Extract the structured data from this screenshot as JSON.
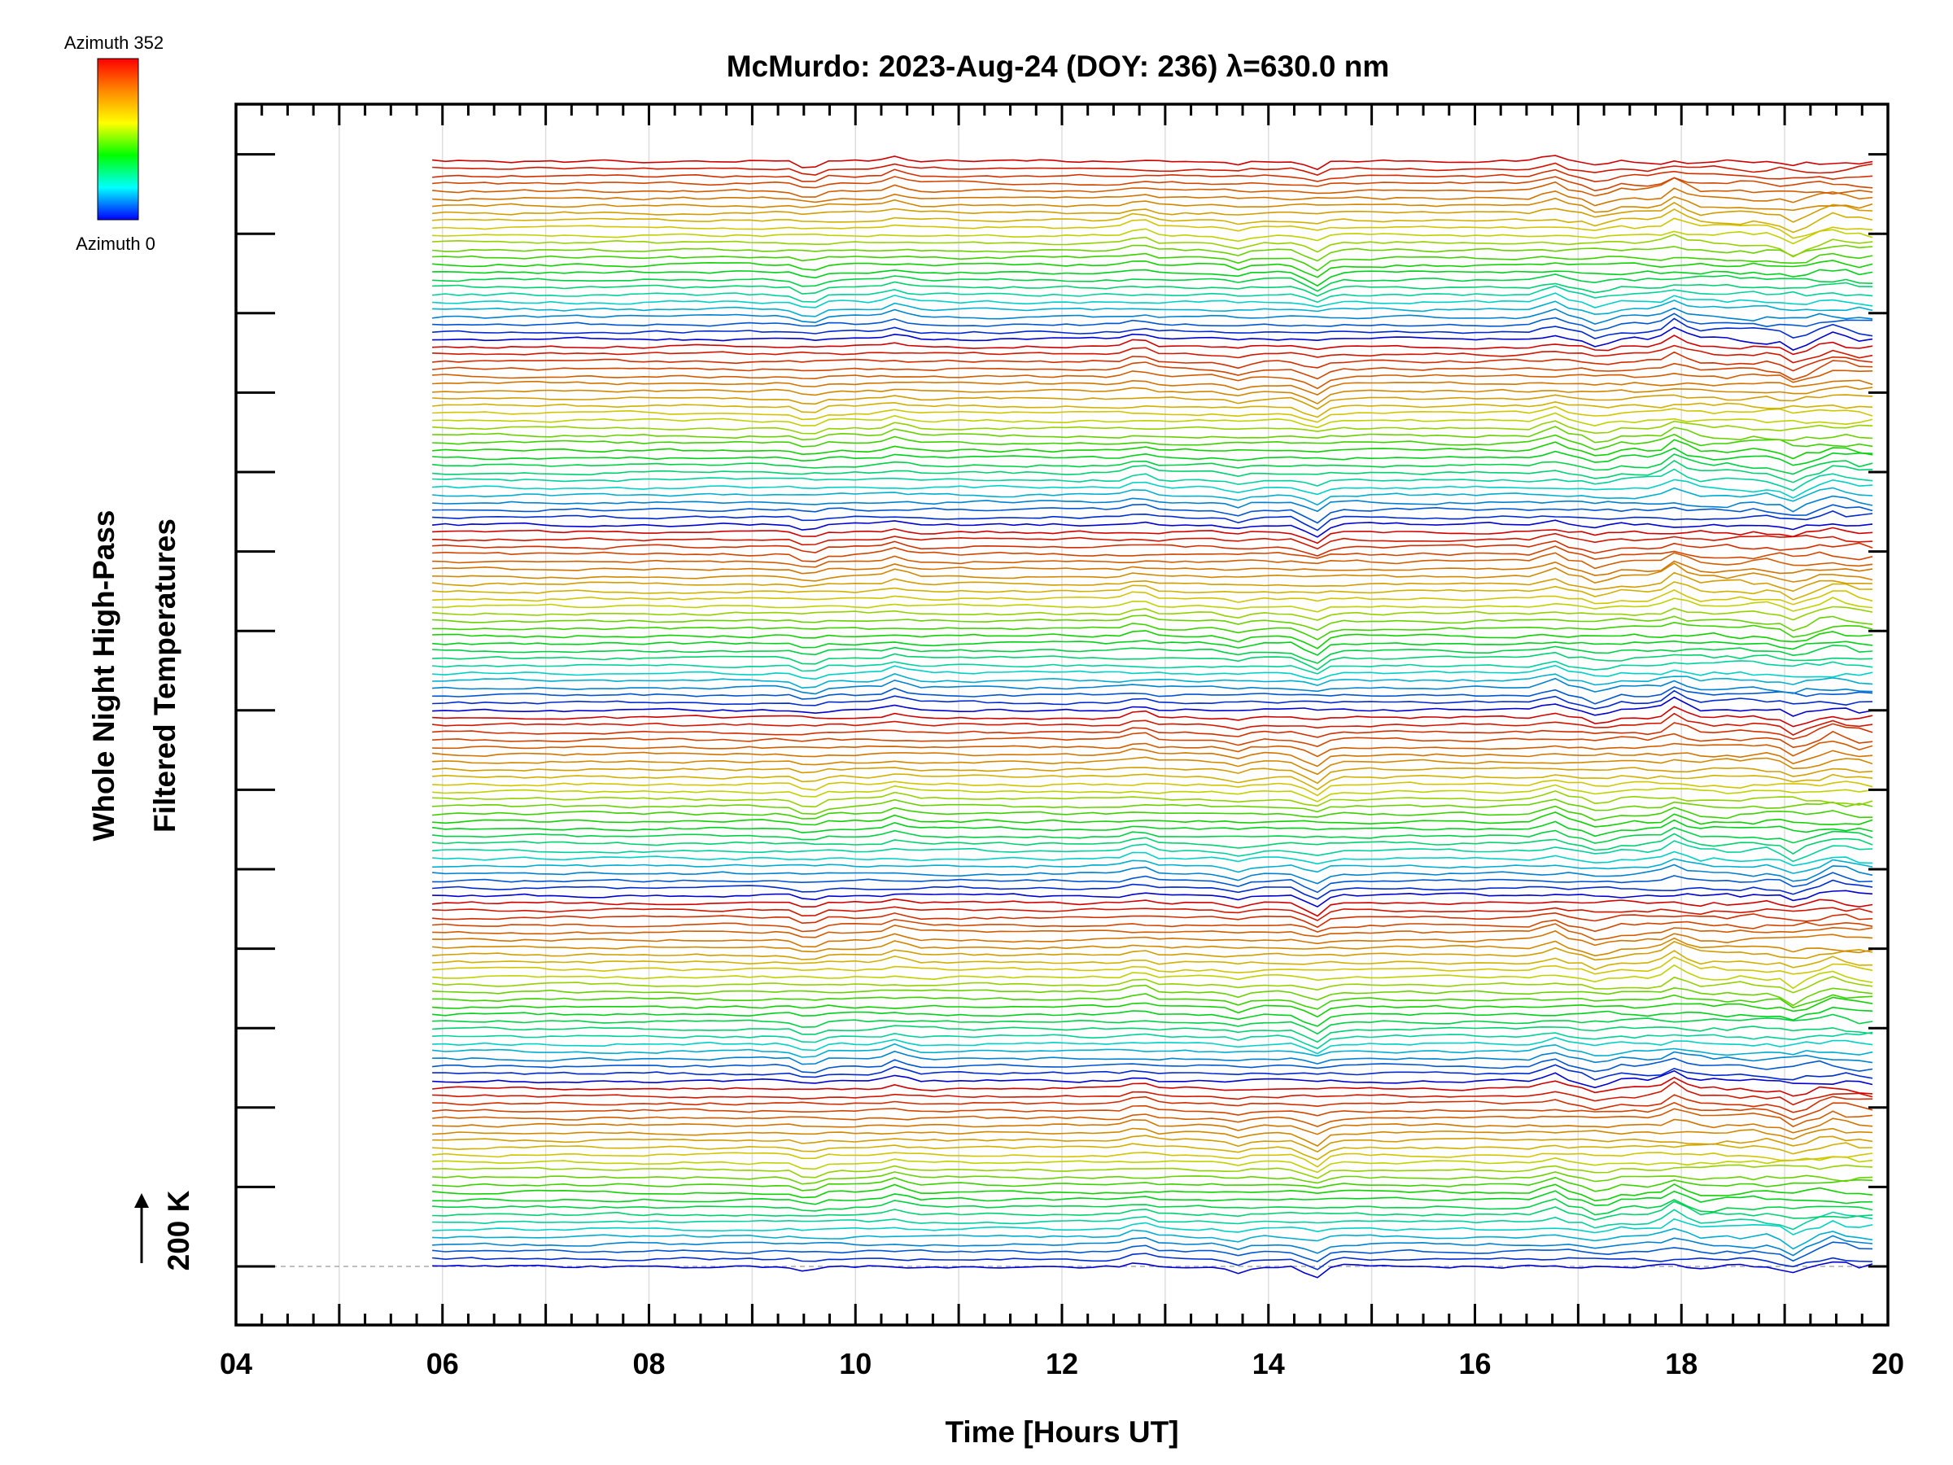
{
  "chart_data": {
    "type": "line",
    "title": "McMurdo: 2023-Aug-24 (DOY: 236) λ=630.0 nm",
    "xlabel": "Time [Hours UT]",
    "ylabel_lines": [
      "Whole Night High-Pass",
      "Filtered Temperatures"
    ],
    "xlim": [
      4,
      20
    ],
    "x_ticks": [
      "04",
      "06",
      "08",
      "10",
      "12",
      "14",
      "16",
      "18",
      "20"
    ],
    "grid": "vertical lines every hour",
    "data_start_hour": 5.9,
    "data_end_hour": 19.85,
    "series_count": 150,
    "panels": 6,
    "traces_per_panel": 25,
    "azimuth_range_deg": [
      0,
      352
    ],
    "trace_offset_reference": "200 K",
    "legend": {
      "top_label": "Azimuth 352",
      "bottom_label": "Azimuth 0",
      "colors": [
        "#ff0000",
        "#ff8800",
        "#ffff00",
        "#00ff00",
        "#00ffff",
        "#0000ff"
      ]
    }
  }
}
